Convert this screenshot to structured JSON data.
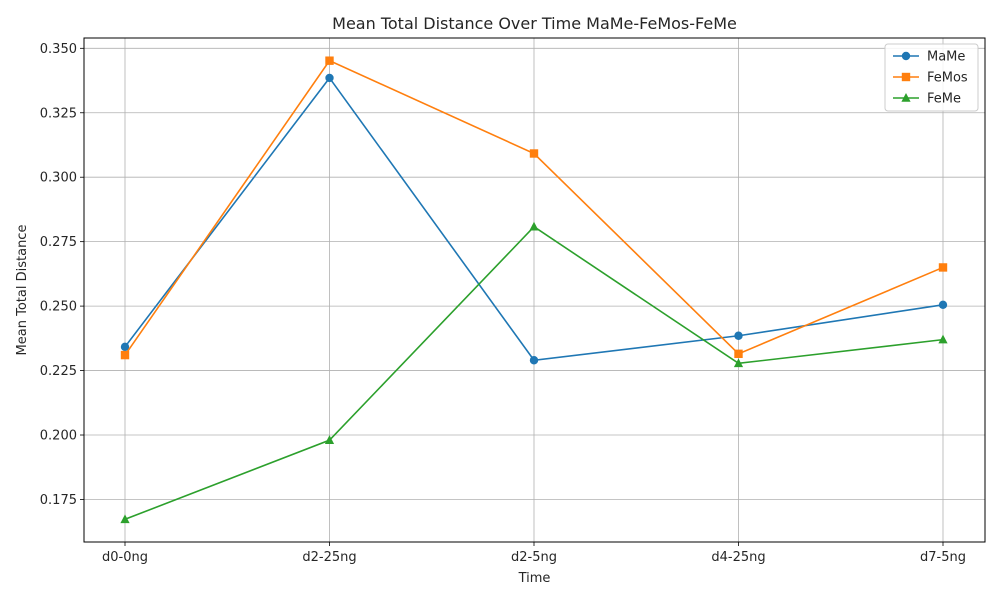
{
  "chart_data": {
    "type": "line",
    "title": "Mean Total Distance Over Time MaMe-FeMos-FeMe",
    "xlabel": "Time",
    "ylabel": "Mean Total Distance",
    "categories": [
      "d0-0ng",
      "d2-25ng",
      "d2-5ng",
      "d4-25ng",
      "d7-5ng"
    ],
    "ylim": [
      0.1585,
      0.354
    ],
    "yticks": [
      "0.175",
      "0.200",
      "0.225",
      "0.250",
      "0.275",
      "0.300",
      "0.325",
      "0.350"
    ],
    "grid": true,
    "legend_position": "top-right",
    "series": [
      {
        "name": "MaMe",
        "color": "#1f77b4",
        "marker": "circle",
        "values": [
          0.2342,
          0.3385,
          0.229,
          0.2385,
          0.2505
        ]
      },
      {
        "name": "FeMos",
        "color": "#ff7f0e",
        "marker": "square",
        "values": [
          0.231,
          0.3452,
          0.3092,
          0.2315,
          0.265
        ]
      },
      {
        "name": "FeMe",
        "color": "#2ca02c",
        "marker": "triangle",
        "values": [
          0.1673,
          0.198,
          0.2808,
          0.2278,
          0.237
        ]
      }
    ]
  }
}
